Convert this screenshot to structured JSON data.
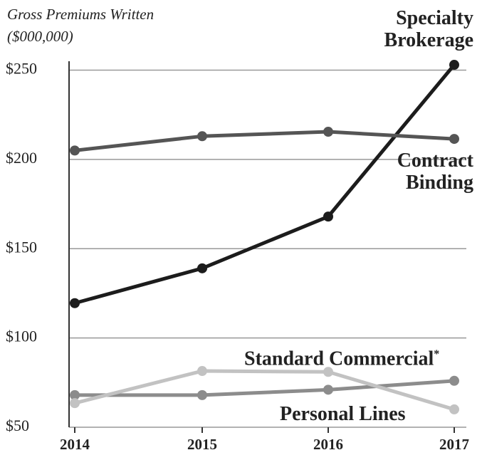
{
  "chart_data": {
    "type": "line",
    "title": "Gross Premiums Written",
    "subtitle": "($000,000)",
    "categories": [
      "2014",
      "2015",
      "2016",
      "2017"
    ],
    "series": [
      {
        "name": "Specialty Brokerage",
        "color": "#1c1c1c",
        "values": [
          119.5,
          139,
          168,
          253
        ]
      },
      {
        "name": "Contract Binding",
        "color": "#555555",
        "values": [
          205,
          213,
          215.5,
          211.5
        ]
      },
      {
        "name": "Standard Commercial",
        "footnote": "*",
        "color": "#8c8c8c",
        "values": [
          68,
          68,
          71,
          76
        ]
      },
      {
        "name": "Personal Lines",
        "color": "#c2c2c2",
        "values": [
          63.5,
          81.5,
          81,
          60
        ]
      }
    ],
    "ylim": [
      50,
      255
    ],
    "yticks": [
      {
        "value": 50,
        "label": "$50"
      },
      {
        "value": 100,
        "label": "$100"
      },
      {
        "value": 150,
        "label": "$150"
      },
      {
        "value": 200,
        "label": "$200"
      },
      {
        "value": 250,
        "label": "$250"
      }
    ],
    "grid": true
  }
}
